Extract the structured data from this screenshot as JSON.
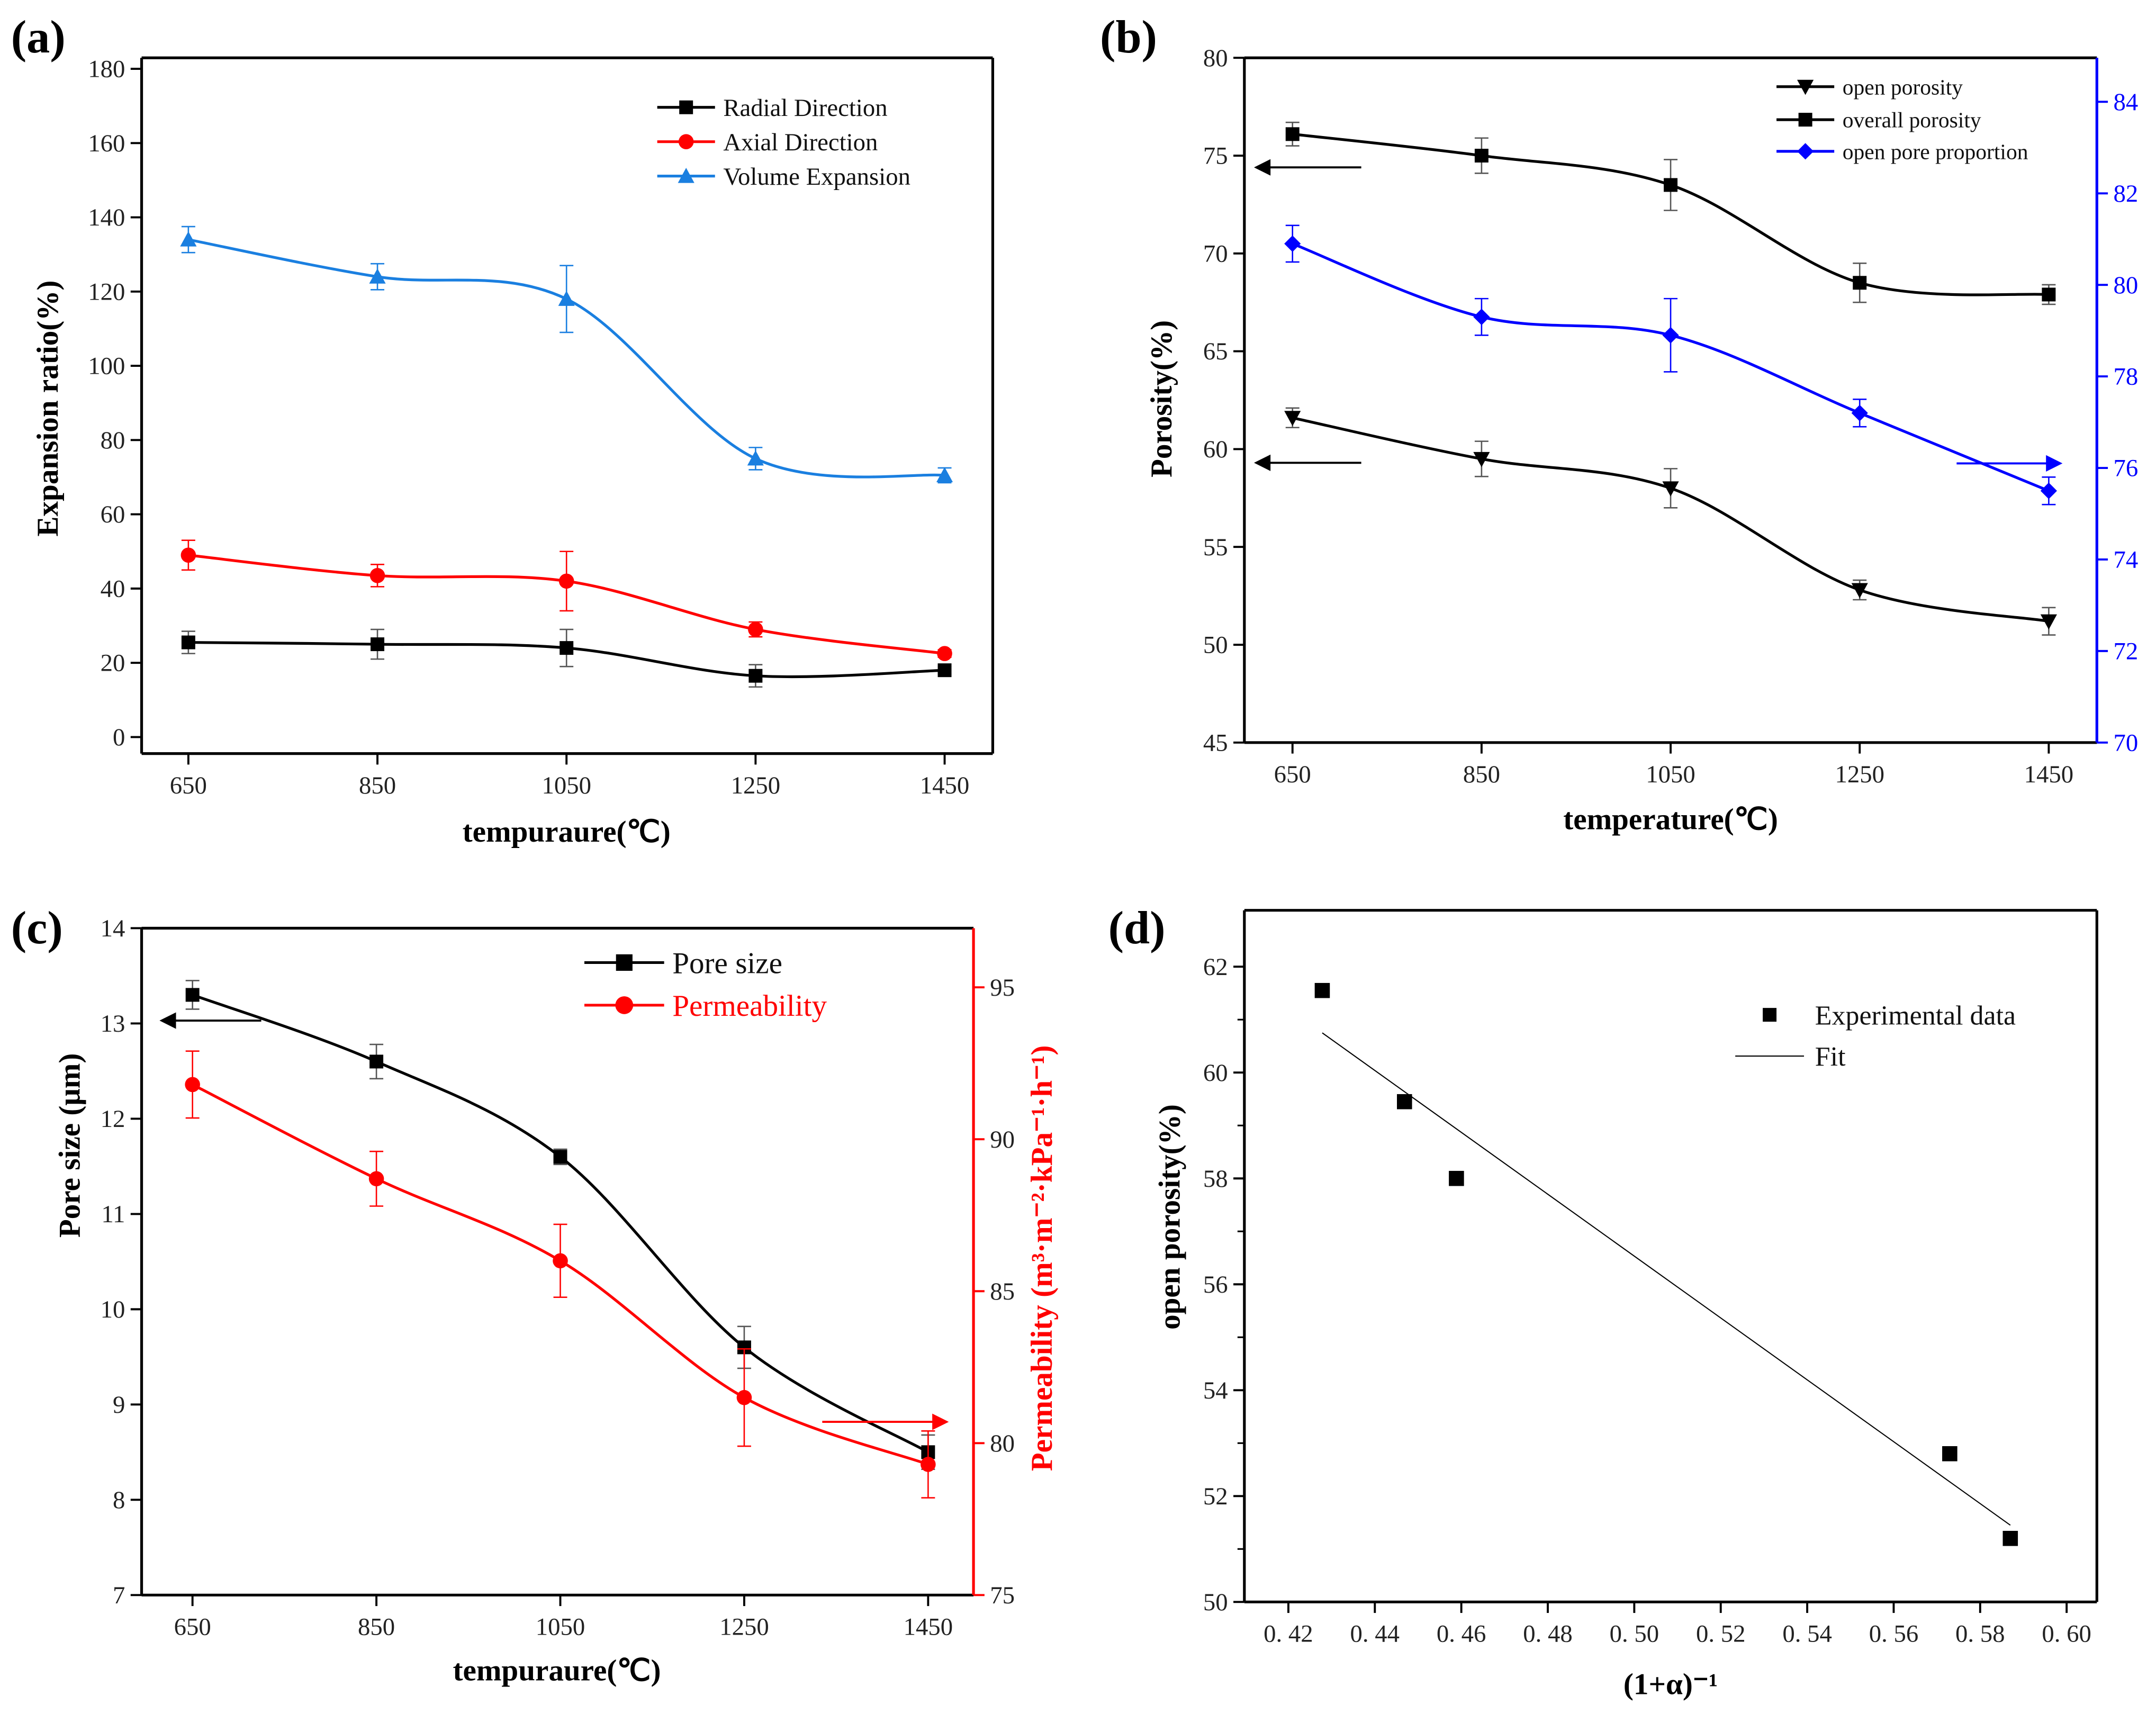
{
  "chart_data": [
    {
      "panel": "(a)",
      "type": "line",
      "xlabel": "tempuraure(℃)",
      "ylabel": "Expansion ratio(%)",
      "x": [
        650,
        850,
        1050,
        1250,
        1450
      ],
      "xticks": [
        "650",
        "850",
        "1050",
        "1250",
        "1450"
      ],
      "yticks": [
        0,
        20,
        40,
        60,
        80,
        100,
        120,
        140,
        160,
        180
      ],
      "ylim": [
        0,
        180
      ],
      "legend": "top-right",
      "series": [
        {
          "name": "Radial Direction",
          "axis": "y",
          "color": "#000000",
          "marker": "square",
          "values": [
            25.5,
            25,
            24,
            16.5,
            18
          ],
          "errors": [
            3,
            4,
            5,
            3,
            1
          ]
        },
        {
          "name": "Axial Direction",
          "axis": "y",
          "color": "#ff0000",
          "marker": "circle",
          "values": [
            49,
            43.5,
            42,
            29,
            22.5
          ],
          "errors": [
            4,
            3,
            8,
            2,
            1
          ]
        },
        {
          "name": "Volume Expansion",
          "axis": "y",
          "color": "#1a7fe0",
          "marker": "triangle-up",
          "values": [
            134,
            124,
            118,
            75,
            70.5
          ],
          "errors": [
            3.5,
            3.5,
            9,
            3,
            2
          ]
        }
      ]
    },
    {
      "panel": "(b)",
      "type": "line",
      "xlabel": "temperature(℃)",
      "ylabel": "Porosity(%)",
      "x": [
        650,
        850,
        1050,
        1250,
        1450
      ],
      "xticks": [
        "650",
        "850",
        "1050",
        "1250",
        "1450"
      ],
      "yticks": [
        45,
        50,
        55,
        60,
        65,
        70,
        75,
        80
      ],
      "ylim": [
        45,
        80
      ],
      "y2ticks": [
        70,
        72,
        74,
        76,
        78,
        80,
        82,
        84
      ],
      "y2lim": [
        70,
        85
      ],
      "y2color": "#0000ff",
      "legend": "top-right",
      "series": [
        {
          "name": "open porosity",
          "axis": "y",
          "color": "#000000",
          "marker": "triangle-down",
          "values": [
            61.6,
            59.5,
            58,
            52.8,
            51.2
          ],
          "errors": [
            0.5,
            0.9,
            1.0,
            0.5,
            0.7
          ]
        },
        {
          "name": "overall porosity",
          "axis": "y",
          "color": "#000000",
          "marker": "square",
          "values": [
            76.1,
            75,
            73.5,
            68.5,
            67.9
          ],
          "errors": [
            0.6,
            0.9,
            1.3,
            1.0,
            0.5
          ]
        },
        {
          "name": "open pore proportion",
          "axis": "y2",
          "color": "#0000ff",
          "marker": "diamond",
          "values": [
            80.9,
            79.3,
            78.9,
            77.2,
            75.5
          ],
          "errors": [
            0.4,
            0.4,
            0.8,
            0.3,
            0.3
          ]
        }
      ],
      "annotations": [
        {
          "type": "arrow",
          "direction": "left",
          "axis": "y",
          "at": 74.4,
          "color": "#000000"
        },
        {
          "type": "arrow",
          "direction": "left",
          "axis": "y",
          "at": 59.3,
          "color": "#000000"
        },
        {
          "type": "arrow",
          "direction": "right",
          "axis": "y2",
          "at": 76.1,
          "color": "#0000ff"
        }
      ]
    },
    {
      "panel": "(c)",
      "type": "line",
      "xlabel": "tempuraure(℃)",
      "ylabel": "Pore size (μm)",
      "y2label": "Permeability (m³·m⁻²·kPa⁻¹·h⁻¹)",
      "x": [
        650,
        850,
        1050,
        1250,
        1450
      ],
      "xticks": [
        "650",
        "850",
        "1050",
        "1250",
        "1450"
      ],
      "yticks": [
        7,
        8,
        9,
        10,
        11,
        12,
        13,
        14
      ],
      "ylim": [
        7,
        14
      ],
      "y2ticks": [
        75,
        80,
        85,
        90,
        95
      ],
      "y2lim": [
        75,
        97
      ],
      "y2color": "#ff0000",
      "legend": "top-right",
      "series": [
        {
          "name": "Pore size",
          "axis": "y",
          "color": "#000000",
          "marker": "square",
          "values": [
            13.3,
            12.6,
            11.6,
            9.6,
            8.5
          ],
          "errors": [
            0.15,
            0.18,
            0.08,
            0.22,
            0.18
          ]
        },
        {
          "name": "Permeability",
          "axis": "y2",
          "color": "#ff0000",
          "marker": "circle",
          "values": [
            91.8,
            88.7,
            86.0,
            81.5,
            79.3
          ],
          "errors": [
            1.1,
            0.9,
            1.2,
            1.6,
            1.1
          ]
        }
      ],
      "annotations": [
        {
          "type": "arrow",
          "direction": "left",
          "axis": "y",
          "at": 13.03,
          "color": "#000000"
        },
        {
          "type": "arrow",
          "direction": "right",
          "axis": "y2",
          "at": 80.7,
          "color": "#ff0000"
        }
      ]
    },
    {
      "panel": "(d)",
      "type": "scatter",
      "xlabel": "(1+α)⁻¹",
      "ylabel": "open porosity(%)",
      "xticks": [
        "0. 42",
        "0. 44",
        "0. 46",
        "0. 48",
        "0. 50",
        "0. 52",
        "0. 54",
        "0. 56",
        "0. 58",
        "0. 60"
      ],
      "xtick_values": [
        0.42,
        0.44,
        0.46,
        0.48,
        0.5,
        0.52,
        0.54,
        0.56,
        0.58,
        0.6
      ],
      "xlim": [
        0.41,
        0.607
      ],
      "yticks": [
        50,
        52,
        54,
        56,
        58,
        60,
        62
      ],
      "ylim": [
        50,
        63
      ],
      "legend": "top-right",
      "series": [
        {
          "name": "Experimental data",
          "color": "#000000",
          "marker": "square",
          "points": [
            [
              0.428,
              61.55
            ],
            [
              0.447,
              59.45
            ],
            [
              0.459,
              58.0
            ],
            [
              0.573,
              52.8
            ],
            [
              0.587,
              51.2
            ]
          ]
        },
        {
          "name": "Fit",
          "color": "#000000",
          "marker": "none",
          "line": [
            [
              0.428,
              60.75
            ],
            [
              0.587,
              51.45
            ]
          ]
        }
      ]
    }
  ]
}
